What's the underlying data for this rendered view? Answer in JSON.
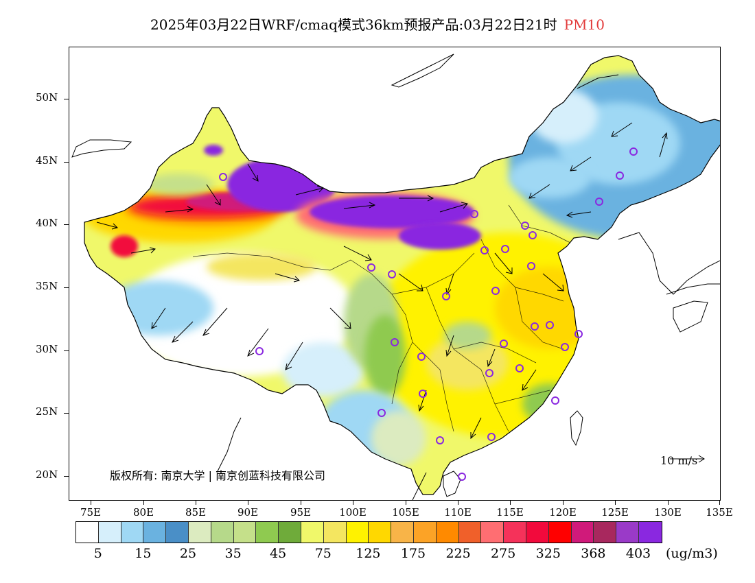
{
  "title": {
    "main": "2025年03月22日WRF/cmaq模式36km预报产品:03月22日21时",
    "variable": "PM10"
  },
  "latitude_labels": [
    "50N",
    "45N",
    "40N",
    "35N",
    "30N",
    "25N",
    "20N"
  ],
  "longitude_labels": [
    "75E",
    "80E",
    "85E",
    "90E",
    "95E",
    "100E",
    "105E",
    "110E",
    "115E",
    "120E",
    "125E",
    "130E",
    "135E"
  ],
  "legend": {
    "colors": [
      "#ffffff",
      "#d6effb",
      "#9fd8f4",
      "#6ab2e0",
      "#4a8fc7",
      "#dcebc0",
      "#b6d98a",
      "#c5e08a",
      "#8fca50",
      "#6fab3a",
      "#f0f86a",
      "#f4e660",
      "#fff200",
      "#ffd800",
      "#f8b448",
      "#fca326",
      "#ff8a00",
      "#f0602a",
      "#ff6e72",
      "#f5325a",
      "#f20a3c",
      "#ff0000",
      "#d01a7a",
      "#a8285e",
      "#9a3ac8",
      "#8a28e0"
    ],
    "labels": [
      "5",
      "15",
      "25",
      "35",
      "45",
      "75",
      "125",
      "175",
      "225",
      "275",
      "325",
      "368",
      "403"
    ],
    "unit": "(ug/m3)"
  },
  "copyright": "版权所有: 南京大学 | 南京创蓝科技有限公司",
  "wind_reference": "10 m/s",
  "icons": [
    "city-marker-icon",
    "wind-arrow-icon"
  ]
}
